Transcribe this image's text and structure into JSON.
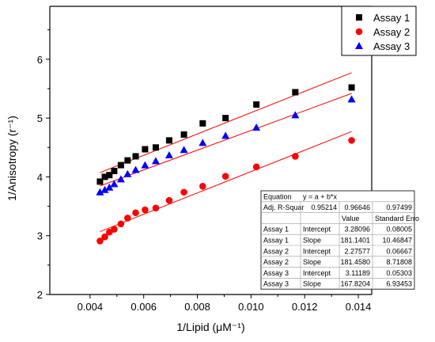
{
  "chart_data": {
    "type": "scatter",
    "title": "",
    "xlabel": "1/Lipid (μM⁻¹)",
    "ylabel": "1/Anisotropy (r⁻¹)",
    "xlim": [
      0.0025,
      0.0145
    ],
    "ylim": [
      2.0,
      6.9
    ],
    "xticks": [
      "0.004",
      "0.006",
      "0.008",
      "0.010",
      "0.012",
      "0.014"
    ],
    "yticks": [
      "2",
      "3",
      "4",
      "5",
      "6"
    ],
    "legend_position": "top-right",
    "series": [
      {
        "name": "Assay 1",
        "color": "#000000",
        "marker": "square",
        "x": [
          0.00437,
          0.00455,
          0.00472,
          0.0049,
          0.00515,
          0.0054,
          0.0057,
          0.00605,
          0.00645,
          0.00695,
          0.0075,
          0.0082,
          0.00905,
          0.0102,
          0.01165,
          0.01375
        ],
        "y": [
          3.92,
          4.0,
          4.03,
          4.1,
          4.2,
          4.28,
          4.35,
          4.47,
          4.5,
          4.62,
          4.72,
          4.91,
          5.0,
          5.23,
          5.44,
          5.52
        ],
        "fit": {
          "intercept": 3.28096,
          "slope": 181.1401
        }
      },
      {
        "name": "Assay 2",
        "color": "#ff0000",
        "marker": "circle",
        "x": [
          0.00437,
          0.00455,
          0.00472,
          0.0049,
          0.00515,
          0.0054,
          0.0057,
          0.00605,
          0.00645,
          0.00695,
          0.0075,
          0.0082,
          0.00905,
          0.0102,
          0.01165,
          0.01375
        ],
        "y": [
          2.91,
          2.98,
          3.06,
          3.11,
          3.2,
          3.3,
          3.39,
          3.44,
          3.47,
          3.6,
          3.74,
          3.84,
          4.01,
          4.17,
          4.35,
          4.62
        ],
        "fit": {
          "intercept": 2.27577,
          "slope": 181.458
        }
      },
      {
        "name": "Assay 3",
        "color": "#0000ff",
        "marker": "triangle",
        "x": [
          0.00437,
          0.00455,
          0.00472,
          0.0049,
          0.00515,
          0.0054,
          0.0057,
          0.00605,
          0.00645,
          0.00695,
          0.0075,
          0.0082,
          0.00905,
          0.0102,
          0.01165,
          0.01375
        ],
        "y": [
          3.74,
          3.78,
          3.82,
          3.88,
          3.96,
          4.05,
          4.12,
          4.2,
          4.27,
          4.37,
          4.46,
          4.58,
          4.7,
          4.84,
          5.05,
          5.32
        ],
        "fit": {
          "intercept": 3.11189,
          "slope": 167.8204
        }
      }
    ],
    "fit_line_color": "#ff0000",
    "fit_x_range": [
      0.00437,
      0.01375
    ],
    "stats_table": {
      "header_rows": [
        [
          "Equation",
          "y = a + b*x",
          "",
          ""
        ],
        [
          "Adj. R-Squar",
          "0.95214",
          "0.96646",
          "0.97499"
        ],
        [
          "",
          "",
          "Value",
          "Standard Erro"
        ]
      ],
      "rows": [
        [
          "Assay 1",
          "Intercept",
          "3.28096",
          "0.08005"
        ],
        [
          "Assay 1",
          "Slope",
          "181.1401",
          "10.46847"
        ],
        [
          "Assay 2",
          "Intercept",
          "2.27577",
          "0.06667"
        ],
        [
          "Assay 2",
          "Slope",
          "181.4580",
          "8.71808"
        ],
        [
          "Assay 3",
          "Intercept",
          "3.11189",
          "0.05303"
        ],
        [
          "Assay 3",
          "Slope",
          "167.8204",
          "6.93453"
        ]
      ]
    }
  }
}
